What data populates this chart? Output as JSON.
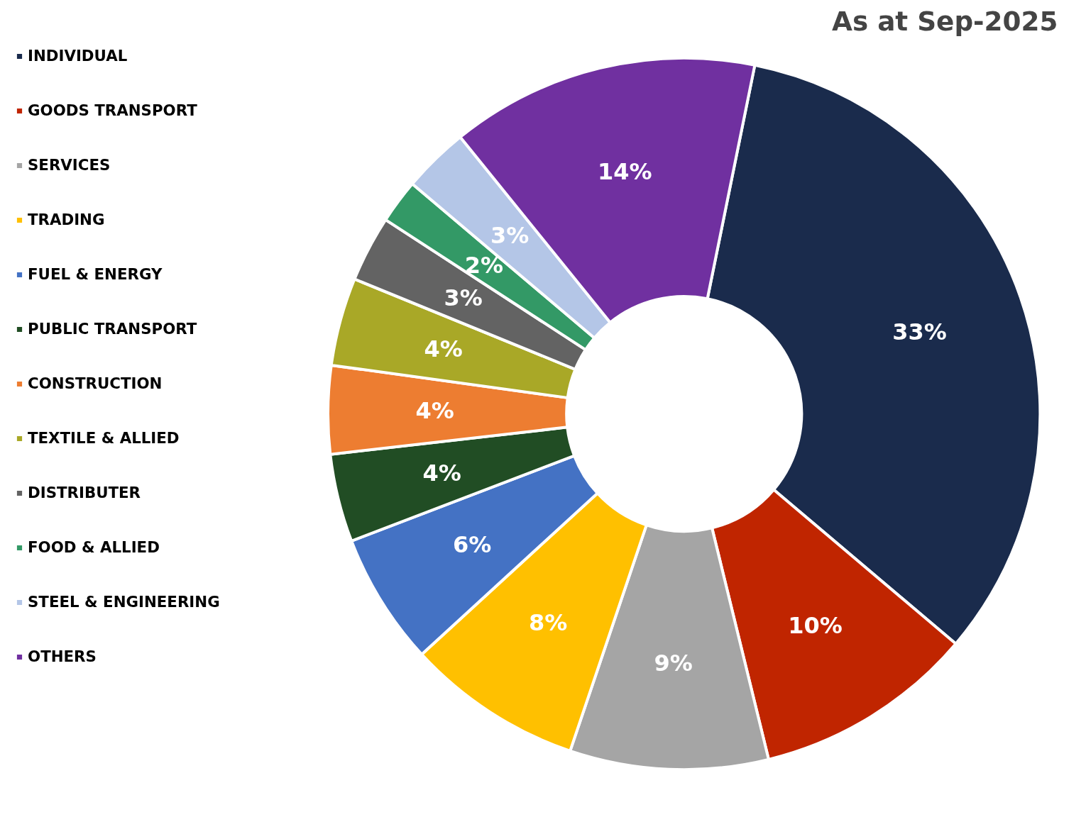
{
  "chart_data": {
    "type": "donut",
    "title": "As at Sep-2025",
    "categories": [
      "INDIVIDUAL",
      "GOODS TRANSPORT",
      "SERVICES",
      "TRADING",
      "FUEL & ENERGY",
      "PUBLIC TRANSPORT",
      "CONSTRUCTION",
      "TEXTILE & ALLIED",
      "DISTRIBUTER",
      "FOOD & ALLIED",
      "STEEL & ENGINEERING",
      "OTHERS"
    ],
    "values": [
      33,
      10,
      9,
      8,
      6,
      4,
      4,
      4,
      3,
      2,
      3,
      14
    ],
    "colors": [
      "#1a2b4c",
      "#c02500",
      "#a5a5a5",
      "#ffc000",
      "#4472c4",
      "#214d24",
      "#ed7d31",
      "#a9a827",
      "#636363",
      "#339966",
      "#b4c6e7",
      "#7030a0"
    ],
    "value_labels": [
      "33%",
      "10%",
      "9%",
      "8%",
      "6%",
      "4%",
      "4%",
      "4%",
      "3%",
      "2%",
      "3%",
      "14%"
    ],
    "legend": "left"
  }
}
